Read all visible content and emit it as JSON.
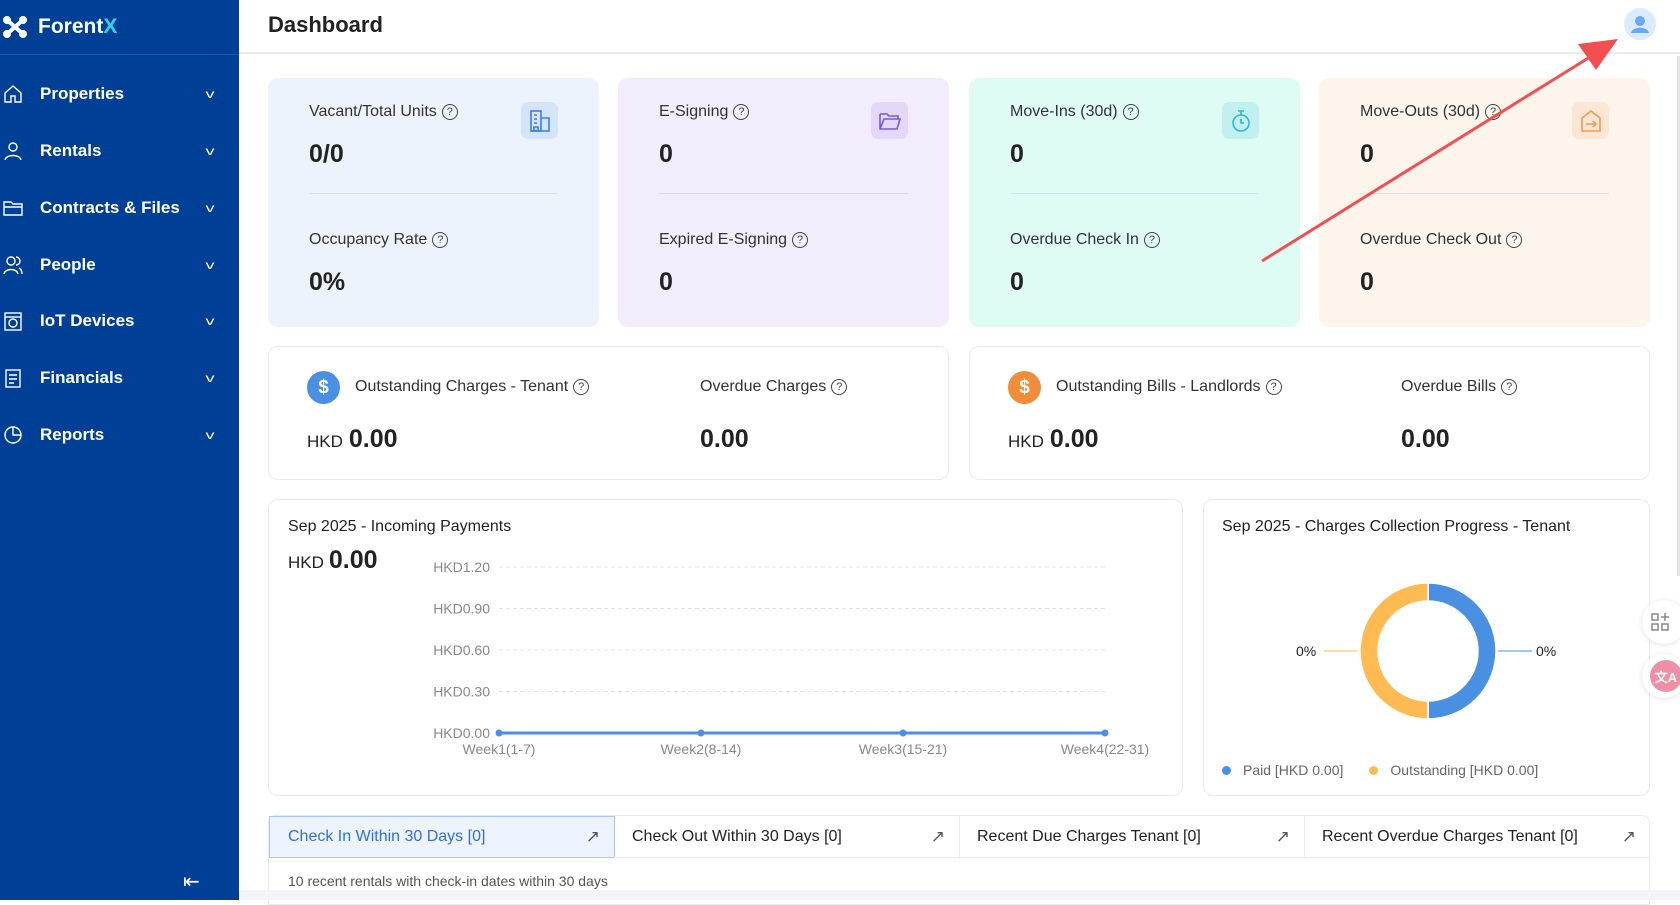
{
  "app": {
    "brand_main": "Forent",
    "brand_accent": "X"
  },
  "sidebar": {
    "items": [
      {
        "label": "Properties",
        "icon": "home-icon"
      },
      {
        "label": "Rentals",
        "icon": "user-icon"
      },
      {
        "label": "Contracts & Files",
        "icon": "folder-icon"
      },
      {
        "label": "People",
        "icon": "people-icon"
      },
      {
        "label": "IoT Devices",
        "icon": "device-icon"
      },
      {
        "label": "Financials",
        "icon": "document-icon"
      },
      {
        "label": "Reports",
        "icon": "pie-icon"
      }
    ],
    "collapse_label": "⇤"
  },
  "header": {
    "title": "Dashboard"
  },
  "stats": [
    {
      "label1": "Vacant/Total Units",
      "value1": "0/0",
      "label2": "Occupancy Rate",
      "value2": "0%",
      "color": "#edf3fd"
    },
    {
      "label1": "E-Signing",
      "value1": "0",
      "label2": "Expired E-Signing",
      "value2": "0",
      "color": "#f2ecfc"
    },
    {
      "label1": "Move-Ins (30d)",
      "value1": "0",
      "label2": "Overdue Check In",
      "value2": "0",
      "color": "#dffcf4"
    },
    {
      "label1": "Move-Outs (30d)",
      "value1": "0",
      "label2": "Overdue Check Out",
      "value2": "0",
      "color": "#fdf5ec"
    }
  ],
  "money": [
    {
      "label": "Outstanding Charges - Tenant",
      "currency": "HKD",
      "value": "0.00",
      "label2": "Overdue Charges",
      "value2": "0.00"
    },
    {
      "label": "Outstanding Bills - Landlords",
      "currency": "HKD",
      "value": "0.00",
      "label2": "Overdue Bills",
      "value2": "0.00"
    }
  ],
  "payments": {
    "title": "Sep 2025 - Incoming Payments",
    "currency": "HKD",
    "total": "0.00"
  },
  "collection": {
    "title": "Sep 2025 - Charges Collection Progress - Tenant",
    "left_pct": "0%",
    "right_pct": "0%",
    "legend": [
      {
        "label": "Paid [HKD 0.00]",
        "color": "#4a90e2"
      },
      {
        "label": "Outstanding [HKD 0.00]",
        "color": "#ffba52"
      }
    ]
  },
  "chart_data": [
    {
      "type": "line",
      "title": "Sep 2025 - Incoming Payments",
      "categories": [
        "Week1(1-7)",
        "Week2(8-14)",
        "Week3(15-21)",
        "Week4(22-31)"
      ],
      "values": [
        0,
        0,
        0,
        0
      ],
      "yticks": [
        "HKD0.00",
        "HKD0.30",
        "HKD0.60",
        "HKD0.90",
        "HKD1.20"
      ],
      "ylim": [
        0,
        1.2
      ],
      "grid": true
    },
    {
      "type": "pie",
      "title": "Sep 2025 - Charges Collection Progress - Tenant",
      "labels": [
        "Paid",
        "Outstanding"
      ],
      "values": [
        0,
        0
      ],
      "display_pct": [
        "0%",
        "0%"
      ]
    }
  ],
  "tabs": [
    {
      "label": "Check In Within 30 Days [0]",
      "active": true
    },
    {
      "label": "Check Out Within 30 Days [0]"
    },
    {
      "label": "Recent Due Charges Tenant [0]"
    },
    {
      "label": "Recent Overdue Charges Tenant [0]"
    }
  ],
  "tab_content": {
    "note": "10 recent rentals with check-in dates within 30 days"
  }
}
